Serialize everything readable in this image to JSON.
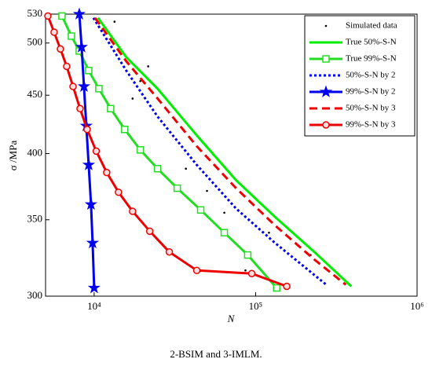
{
  "chart_data": {
    "type": "line",
    "xlabel": "N",
    "ylabel": "σ /MPa",
    "caption": "2-BSIM and 3-IMLM.",
    "xscale": "log",
    "yscale": "log",
    "legend": "upper right",
    "xlim": [
      5000,
      1000000
    ],
    "ylim": [
      300,
      530
    ],
    "xticks": [
      {
        "value": 10000,
        "label": "10⁴"
      },
      {
        "value": 100000,
        "label": "10⁵"
      },
      {
        "value": 1000000,
        "label": "10⁶"
      }
    ],
    "yticks": [
      300,
      350,
      400,
      450,
      500,
      530
    ],
    "series": [
      {
        "name": "Simulated data",
        "color": "#000000",
        "line": "none",
        "marker": "dot",
        "x": [
          13370,
          21600,
          19300,
          17300,
          20000,
          37000,
          50000,
          64000,
          121000,
          219000,
          86500
        ],
        "values": [
          522,
          477,
          463,
          447,
          402,
          388,
          371,
          355,
          341,
          326,
          316
        ]
      },
      {
        "name": "True 50%-S-N",
        "color": "#00ee00",
        "line": "solid",
        "marker": "none",
        "x": [
          10570,
          15800,
          24700,
          43200,
          75700,
          132000,
          231000,
          391000
        ],
        "values": [
          526,
          486,
          456,
          415,
          379,
          352,
          328,
          306
        ]
      },
      {
        "name": "True 99%-S-N",
        "color": "#22dd22",
        "line": "solid",
        "marker": "square",
        "x": [
          6320,
          7230,
          8090,
          9250,
          10700,
          12650,
          15460,
          19300,
          24700,
          32700,
          45700,
          64000,
          89400,
          135000
        ],
        "values": [
          528,
          507,
          492,
          473,
          456,
          438,
          420,
          403,
          388,
          373,
          357,
          341,
          326,
          305
        ]
      },
      {
        "name": "50%-S-N by 2",
        "color": "#0000ee",
        "line": "dotted",
        "marker": "none",
        "x": [
          9890,
          15800,
          24700,
          43200,
          75700,
          132000,
          274000
        ],
        "values": [
          526,
          473,
          431,
          391,
          358,
          334,
          307
        ]
      },
      {
        "name": "99%-S-N by 2",
        "color": "#0000ee",
        "line": "solid",
        "marker": "star",
        "x": [
          8090,
          8360,
          8650,
          8940,
          9250,
          9560,
          9780,
          10000
        ],
        "values": [
          530,
          496,
          458,
          423,
          391,
          361,
          334,
          305
        ]
      },
      {
        "name": "50%-S-N by 3",
        "color": "#ee0000",
        "line": "dashed",
        "marker": "none",
        "x": [
          10110,
          15800,
          24700,
          43200,
          75700,
          132000,
          231000,
          362000
        ],
        "values": [
          526,
          482,
          447,
          406,
          373,
          346,
          323,
          307
        ]
      },
      {
        "name": "99%-S-N by 3",
        "color": "#ee0000",
        "line": "solid",
        "marker": "circle",
        "x": [
          5170,
          5650,
          6180,
          6760,
          7400,
          8180,
          9050,
          10300,
          11960,
          14150,
          17300,
          22100,
          29200,
          43200,
          94600,
          156000
        ],
        "values": [
          528,
          511,
          494,
          477,
          458,
          438,
          420,
          402,
          385,
          370,
          356,
          342,
          328,
          316,
          314,
          306
        ]
      }
    ]
  }
}
